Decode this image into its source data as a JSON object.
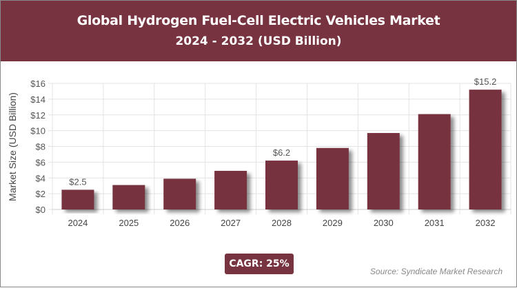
{
  "header": {
    "title": "Global Hydrogen Fuel-Cell Electric Vehicles Market",
    "subtitle": "2024 - 2032 (USD Billion)"
  },
  "chart_data": {
    "type": "bar",
    "categories": [
      "2024",
      "2025",
      "2026",
      "2027",
      "2028",
      "2029",
      "2030",
      "2031",
      "2032"
    ],
    "values": [
      2.5,
      3.1,
      3.9,
      4.9,
      6.2,
      7.8,
      9.7,
      12.1,
      15.2
    ],
    "data_labels": {
      "0": "$2.5",
      "4": "$6.2",
      "8": "$15.2"
    },
    "ylabel": "Market Size (USD Billion)",
    "xlabel": "",
    "ylim": [
      0,
      16
    ],
    "yticks": [
      "$0",
      "$2",
      "$4",
      "$6",
      "$8",
      "$10",
      "$12",
      "$14",
      "$16"
    ],
    "grid": true,
    "bar_color": "#773340"
  },
  "footer": {
    "cagr": "CAGR: 25%",
    "source": "Source: Syndicate Market Research"
  }
}
